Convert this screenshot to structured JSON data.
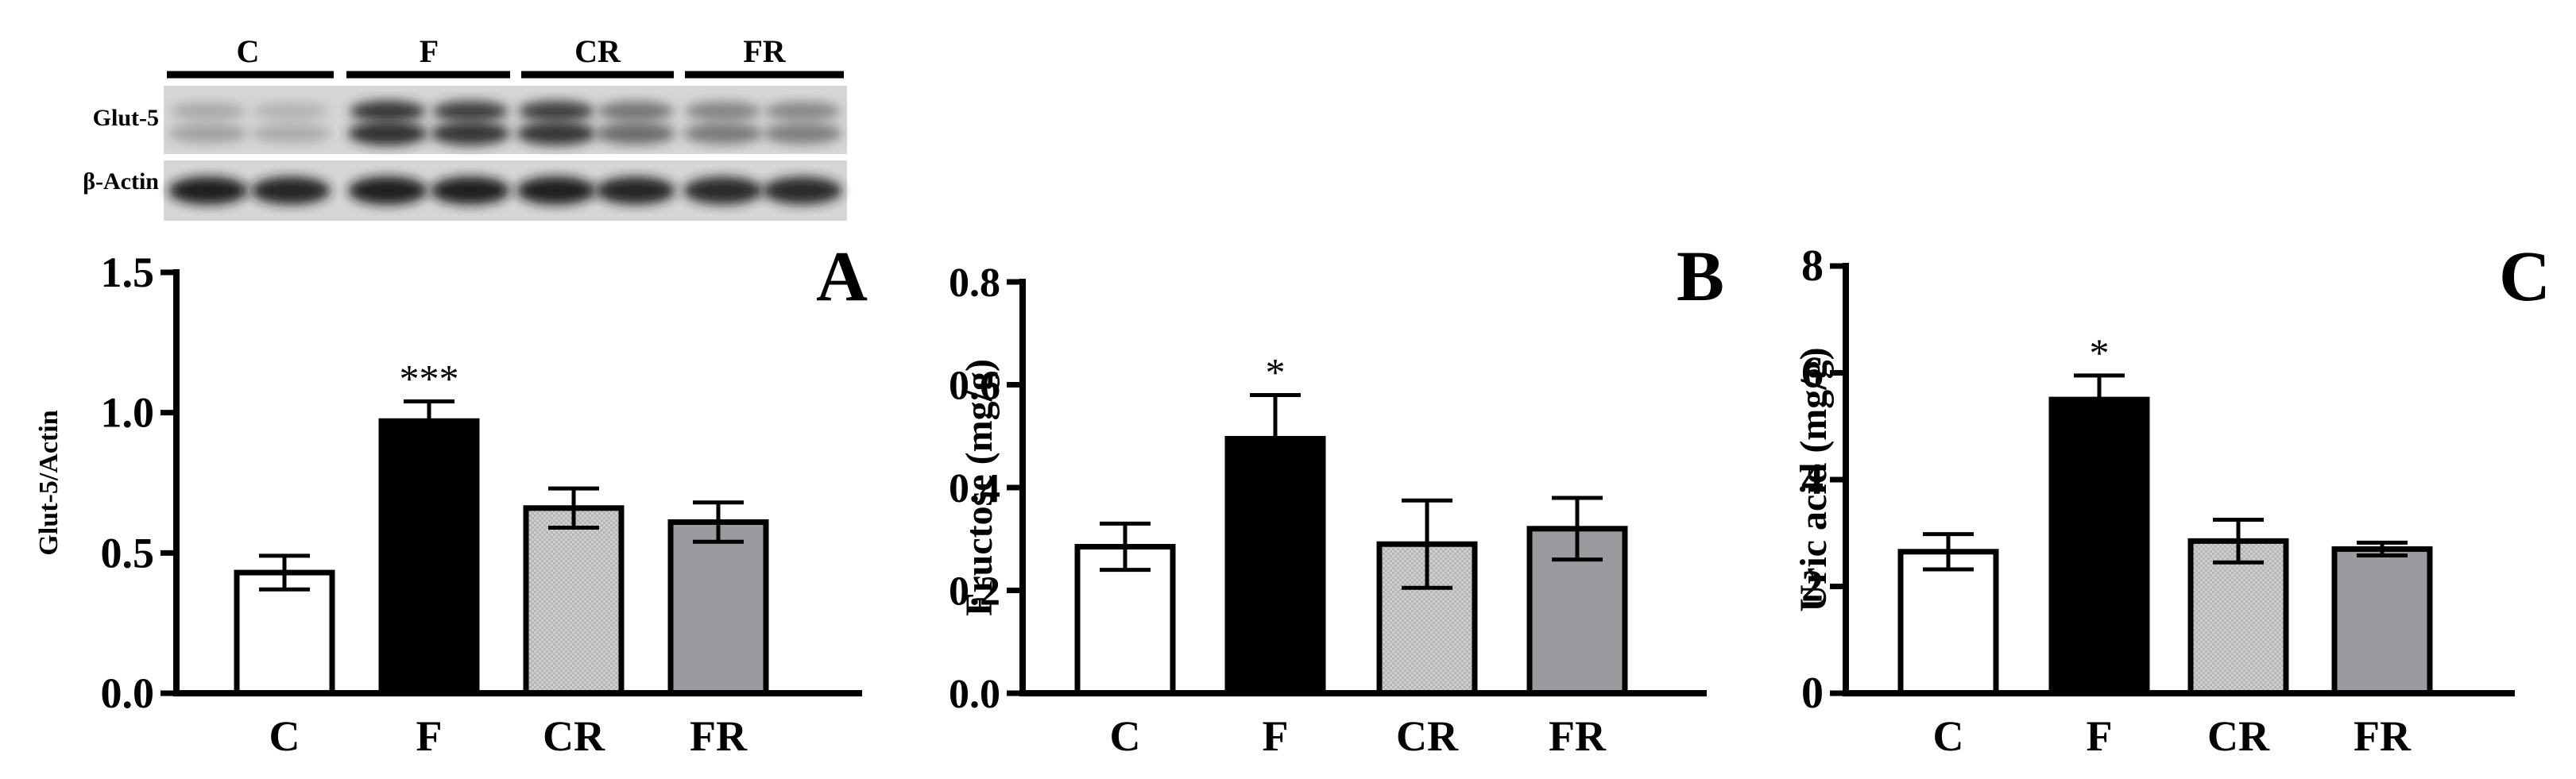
{
  "colors": {
    "axis": "#000000",
    "C": "#ffffff",
    "F": "#000000",
    "CR": "#c8c8c8",
    "FR": "#9b9b9f",
    "blot_bg": "#d6d6d6",
    "band_dark": "#1c1c1c"
  },
  "blot": {
    "group_labels": [
      "C",
      "F",
      "CR",
      "FR"
    ],
    "row_labels": [
      "Glut-5",
      "β-Actin"
    ],
    "glut5_intensity": [
      0.28,
      0.22,
      0.85,
      0.82,
      0.82,
      0.58,
      0.5,
      0.48
    ],
    "actin_intensity": [
      0.92,
      0.9,
      0.95,
      0.92,
      0.93,
      0.88,
      0.86,
      0.86
    ]
  },
  "chart_data": [
    {
      "type": "bar",
      "panel_letter": "A",
      "categories": [
        "C",
        "F",
        "CR",
        "FR"
      ],
      "values": [
        0.43,
        0.97,
        0.66,
        0.61
      ],
      "errors": [
        0.06,
        0.07,
        0.07,
        0.07
      ],
      "significance": [
        "",
        "***",
        "",
        ""
      ],
      "ylabel": "Glut-5/Actin",
      "ylim": [
        0,
        1.5
      ],
      "yticks": [
        0.0,
        0.5,
        1.0,
        1.5
      ],
      "ytick_labels": [
        "0.0",
        "0.5",
        "1.0",
        "1.5"
      ],
      "grid": false
    },
    {
      "type": "bar",
      "panel_letter": "B",
      "categories": [
        "C",
        "F",
        "CR",
        "FR"
      ],
      "values": [
        0.285,
        0.495,
        0.29,
        0.32
      ],
      "errors": [
        0.045,
        0.085,
        0.085,
        0.06
      ],
      "significance": [
        "",
        "*",
        "",
        ""
      ],
      "ylabel": "Fructose (mg/g)",
      "ylim": [
        0,
        0.8
      ],
      "yticks": [
        0.0,
        0.2,
        0.4,
        0.6,
        0.8
      ],
      "ytick_labels": [
        "0.0",
        "0.2",
        "0.4",
        "0.6",
        "0.8"
      ],
      "grid": false
    },
    {
      "type": "bar",
      "panel_letter": "C",
      "categories": [
        "C",
        "F",
        "CR",
        "FR"
      ],
      "values": [
        2.65,
        5.5,
        2.85,
        2.7
      ],
      "errors": [
        0.33,
        0.45,
        0.4,
        0.12
      ],
      "significance": [
        "",
        "*",
        "",
        ""
      ],
      "ylabel": "Uric acid (mg/g)",
      "ylim": [
        0,
        8
      ],
      "yticks": [
        0,
        2,
        4,
        6,
        8
      ],
      "ytick_labels": [
        "0",
        "2",
        "4",
        "6",
        "8"
      ],
      "grid": false
    }
  ]
}
